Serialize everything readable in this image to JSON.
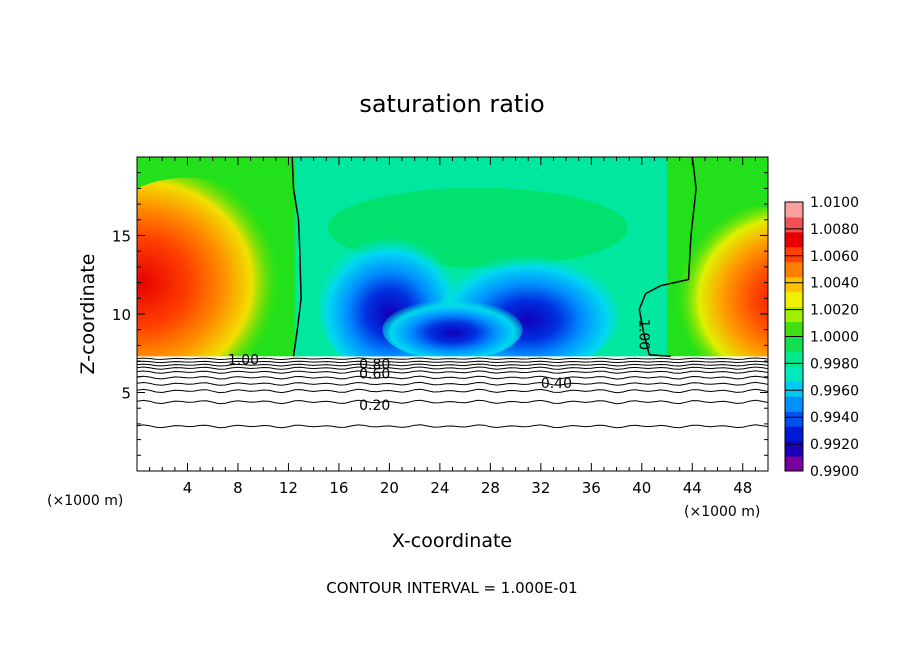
{
  "chart_data": {
    "type": "heatmap",
    "title": "saturation ratio",
    "xlabel": "X-coordinate",
    "ylabel": "Z-coordinate",
    "x_unit_label": "(×1000 m)",
    "x_unit_label_right": "(×1000 m)",
    "footer": "CONTOUR INTERVAL = 1.000E-01",
    "xlim": [
      0,
      50
    ],
    "ylim": [
      0,
      20
    ],
    "x_ticks": [
      "4",
      "8",
      "12",
      "16",
      "20",
      "24",
      "28",
      "32",
      "36",
      "40",
      "44",
      "48"
    ],
    "x_tick_values": [
      4,
      8,
      12,
      16,
      20,
      24,
      28,
      32,
      36,
      40,
      44,
      48
    ],
    "y_ticks": [
      "5",
      "10",
      "15"
    ],
    "y_tick_values": [
      5,
      10,
      15
    ],
    "colorbar": {
      "labels": [
        "1.0100",
        "1.0080",
        "1.0060",
        "1.0040",
        "1.0020",
        "1.0000",
        "0.9980",
        "0.9960",
        "0.9940",
        "0.9920",
        "0.9900"
      ],
      "min": 0.99,
      "max": 1.01,
      "colors": [
        "#7a00a0",
        "#1a00b8",
        "#0018d8",
        "#0050f0",
        "#0090ff",
        "#00c8f0",
        "#00e8c0",
        "#00e890",
        "#10e050",
        "#40e010",
        "#a0f000",
        "#f0f000",
        "#ffc000",
        "#ff8000",
        "#ff4000",
        "#e80000",
        "#f05050",
        "#f8a0a0"
      ]
    },
    "contour_labels": [
      {
        "text": "1.00",
        "x": 7.2,
        "z": 7.1
      },
      {
        "text": "1.00",
        "x": 39.8,
        "z": 10.0
      },
      {
        "text": "0.80",
        "x": 17.6,
        "z": 6.8
      },
      {
        "text": "0.60",
        "x": 17.6,
        "z": 6.2
      },
      {
        "text": "0.40",
        "x": 32.0,
        "z": 5.6
      },
      {
        "text": "0.20",
        "x": 17.6,
        "z": 4.2
      }
    ],
    "contour_levels": [
      0.2,
      0.4,
      0.6,
      0.8,
      1.0
    ],
    "field_samples": [
      {
        "x": 2,
        "z": 13,
        "value": 1.007
      },
      {
        "x": 6,
        "z": 15,
        "value": 1.003
      },
      {
        "x": 46,
        "z": 12,
        "value": 1.007
      },
      {
        "x": 20,
        "z": 11,
        "value": 0.992
      },
      {
        "x": 32,
        "z": 10,
        "value": 0.993
      },
      {
        "x": 26,
        "z": 17,
        "value": 0.998
      }
    ]
  }
}
